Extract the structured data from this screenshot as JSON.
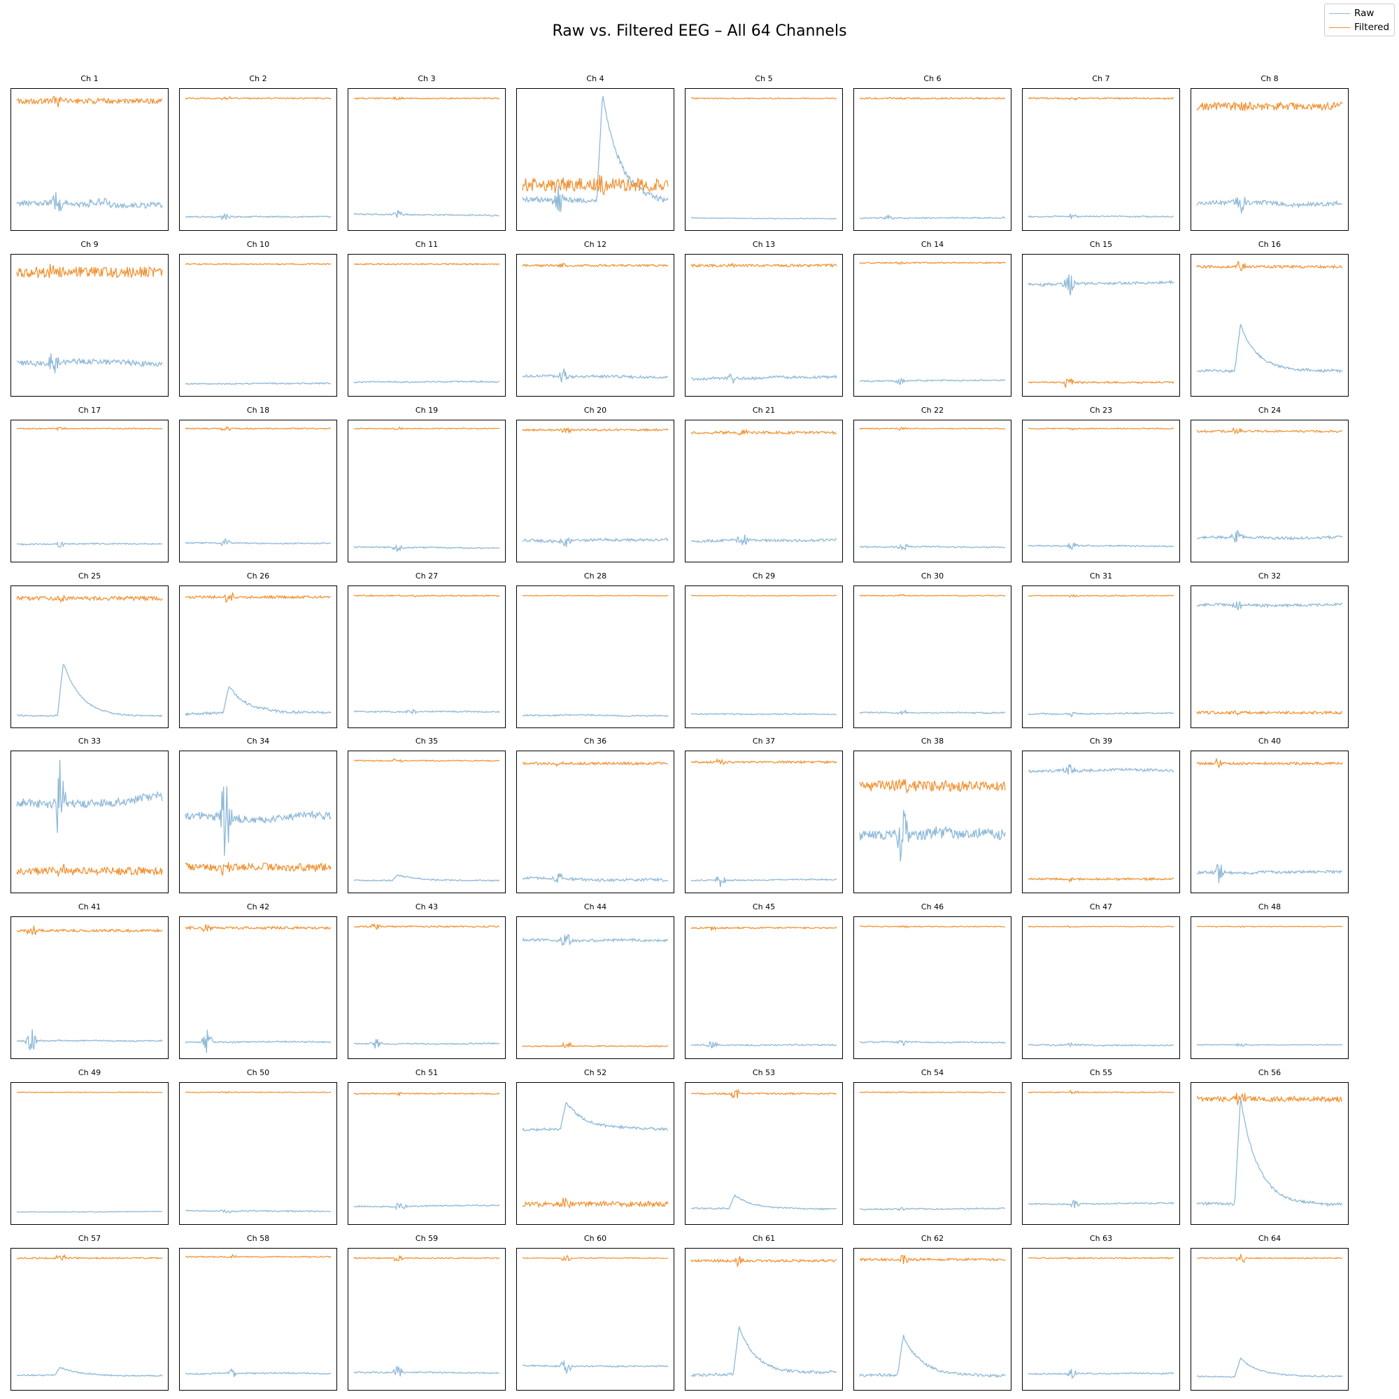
{
  "title": "Raw vs. Filtered EEG – All 64 Channels",
  "legend": {
    "placement": "top-right",
    "items": [
      {
        "label": "Raw",
        "color": "#8fb9d8"
      },
      {
        "label": "Filtered",
        "color": "#f28e2b"
      }
    ]
  },
  "chart_data": {
    "type": "line",
    "subplots_grid": "8x8",
    "axes_ticks": false,
    "grid": false,
    "series_names": [
      "Raw",
      "Filtered"
    ],
    "colors": {
      "raw": "#8fb9d8",
      "filtered": "#f28e2b"
    },
    "note_values": "relative levels per panel, 0 = panel bottom, 1 = panel top",
    "channels": [
      {
        "name": "Ch 1",
        "raw": 0.16,
        "raw_amp": 0.04,
        "raw_events": [
          [
            0.28,
            0.12,
            "burst"
          ],
          [
            0.55,
            0.03,
            "step"
          ]
        ],
        "filt": 0.94,
        "filt_amp": 0.02
      },
      {
        "name": "Ch 2",
        "raw": 0.07,
        "raw_amp": 0.01,
        "raw_events": [
          [
            0.28,
            0.03,
            "burst"
          ]
        ],
        "filt": 0.96,
        "filt_amp": 0.005
      },
      {
        "name": "Ch 3",
        "raw": 0.09,
        "raw_amp": 0.01,
        "raw_events": [
          [
            0.3,
            0.03,
            "burst"
          ]
        ],
        "filt": 0.96,
        "filt_amp": 0.005
      },
      {
        "name": "Ch 4",
        "raw": 0.2,
        "raw_amp": 0.04,
        "raw_events": [
          [
            0.55,
            0.8,
            "peak"
          ],
          [
            0.25,
            0.15,
            "burst"
          ]
        ],
        "filt": 0.31,
        "filt_amp": 0.05
      },
      {
        "name": "Ch 5",
        "raw": 0.06,
        "raw_amp": 0.005,
        "raw_events": [],
        "filt": 0.96,
        "filt_amp": 0.004
      },
      {
        "name": "Ch 6",
        "raw": 0.06,
        "raw_amp": 0.01,
        "raw_events": [
          [
            0.2,
            0.02,
            "burst"
          ]
        ],
        "filt": 0.96,
        "filt_amp": 0.006
      },
      {
        "name": "Ch 7",
        "raw": 0.07,
        "raw_amp": 0.01,
        "raw_events": [
          [
            0.3,
            0.02,
            "burst"
          ]
        ],
        "filt": 0.96,
        "filt_amp": 0.006
      },
      {
        "name": "Ch 8",
        "raw": 0.17,
        "raw_amp": 0.03,
        "raw_events": [
          [
            0.3,
            0.1,
            "burst"
          ]
        ],
        "filt": 0.9,
        "filt_amp": 0.03
      },
      {
        "name": "Ch 9",
        "raw": 0.22,
        "raw_amp": 0.04,
        "raw_events": [
          [
            0.25,
            0.1,
            "burst"
          ]
        ],
        "filt": 0.9,
        "filt_amp": 0.04
      },
      {
        "name": "Ch 10",
        "raw": 0.06,
        "raw_amp": 0.01,
        "raw_events": [],
        "filt": 0.96,
        "filt_amp": 0.005
      },
      {
        "name": "Ch 11",
        "raw": 0.07,
        "raw_amp": 0.01,
        "raw_events": [],
        "filt": 0.96,
        "filt_amp": 0.005
      },
      {
        "name": "Ch 12",
        "raw": 0.12,
        "raw_amp": 0.02,
        "raw_events": [
          [
            0.28,
            0.06,
            "burst"
          ]
        ],
        "filt": 0.95,
        "filt_amp": 0.008
      },
      {
        "name": "Ch 13",
        "raw": 0.1,
        "raw_amp": 0.02,
        "raw_events": [
          [
            0.28,
            0.04,
            "burst"
          ]
        ],
        "filt": 0.95,
        "filt_amp": 0.01
      },
      {
        "name": "Ch 14",
        "raw": 0.08,
        "raw_amp": 0.01,
        "raw_events": [
          [
            0.28,
            0.03,
            "burst"
          ]
        ],
        "filt": 0.97,
        "filt_amp": 0.005
      },
      {
        "name": "Ch 15",
        "raw": 0.81,
        "raw_amp": 0.02,
        "raw_events": [
          [
            0.28,
            0.12,
            "burst"
          ]
        ],
        "filt": 0.07,
        "filt_amp": 0.007
      },
      {
        "name": "Ch 16",
        "raw": 0.16,
        "raw_amp": 0.02,
        "raw_events": [
          [
            0.3,
            0.35,
            "peak"
          ]
        ],
        "filt": 0.94,
        "filt_amp": 0.01
      },
      {
        "name": "Ch 17",
        "raw": 0.1,
        "raw_amp": 0.01,
        "raw_events": [
          [
            0.3,
            0.03,
            "burst"
          ]
        ],
        "filt": 0.97,
        "filt_amp": 0.004
      },
      {
        "name": "Ch 18",
        "raw": 0.11,
        "raw_amp": 0.01,
        "raw_events": [
          [
            0.28,
            0.04,
            "burst"
          ]
        ],
        "filt": 0.97,
        "filt_amp": 0.005
      },
      {
        "name": "Ch 19",
        "raw": 0.08,
        "raw_amp": 0.01,
        "raw_events": [
          [
            0.3,
            0.03,
            "burst"
          ]
        ],
        "filt": 0.97,
        "filt_amp": 0.004
      },
      {
        "name": "Ch 20",
        "raw": 0.13,
        "raw_amp": 0.02,
        "raw_events": [
          [
            0.3,
            0.06,
            "burst"
          ]
        ],
        "filt": 0.96,
        "filt_amp": 0.008
      },
      {
        "name": "Ch 21",
        "raw": 0.12,
        "raw_amp": 0.02,
        "raw_events": [
          [
            0.35,
            0.07,
            "burst"
          ]
        ],
        "filt": 0.94,
        "filt_amp": 0.01
      },
      {
        "name": "Ch 22",
        "raw": 0.08,
        "raw_amp": 0.01,
        "raw_events": [
          [
            0.3,
            0.03,
            "burst"
          ]
        ],
        "filt": 0.97,
        "filt_amp": 0.004
      },
      {
        "name": "Ch 23",
        "raw": 0.09,
        "raw_amp": 0.01,
        "raw_events": [
          [
            0.3,
            0.03,
            "burst"
          ]
        ],
        "filt": 0.97,
        "filt_amp": 0.004
      },
      {
        "name": "Ch 24",
        "raw": 0.15,
        "raw_amp": 0.02,
        "raw_events": [
          [
            0.28,
            0.07,
            "burst"
          ]
        ],
        "filt": 0.95,
        "filt_amp": 0.008
      },
      {
        "name": "Ch 25",
        "raw": 0.06,
        "raw_amp": 0.01,
        "raw_events": [
          [
            0.32,
            0.4,
            "peak"
          ]
        ],
        "filt": 0.94,
        "filt_amp": 0.015
      },
      {
        "name": "Ch 26",
        "raw": 0.07,
        "raw_amp": 0.02,
        "raw_events": [
          [
            0.3,
            0.2,
            "peak"
          ]
        ],
        "filt": 0.95,
        "filt_amp": 0.01
      },
      {
        "name": "Ch 27",
        "raw": 0.09,
        "raw_amp": 0.01,
        "raw_events": [
          [
            0.4,
            0.02,
            "burst"
          ]
        ],
        "filt": 0.96,
        "filt_amp": 0.005
      },
      {
        "name": "Ch 28",
        "raw": 0.06,
        "raw_amp": 0.01,
        "raw_events": [],
        "filt": 0.96,
        "filt_amp": 0.003
      },
      {
        "name": "Ch 29",
        "raw": 0.07,
        "raw_amp": 0.01,
        "raw_events": [],
        "filt": 0.96,
        "filt_amp": 0.003
      },
      {
        "name": "Ch 30",
        "raw": 0.08,
        "raw_amp": 0.01,
        "raw_events": [
          [
            0.3,
            0.02,
            "burst"
          ]
        ],
        "filt": 0.96,
        "filt_amp": 0.004
      },
      {
        "name": "Ch 31",
        "raw": 0.07,
        "raw_amp": 0.01,
        "raw_events": [
          [
            0.3,
            0.02,
            "burst"
          ]
        ],
        "filt": 0.96,
        "filt_amp": 0.004
      },
      {
        "name": "Ch 32",
        "raw": 0.89,
        "raw_amp": 0.02,
        "raw_events": [
          [
            0.28,
            0.05,
            "burst"
          ]
        ],
        "filt": 0.08,
        "filt_amp": 0.01
      },
      {
        "name": "Ch 33",
        "raw": 0.65,
        "raw_amp": 0.06,
        "raw_events": [
          [
            0.3,
            0.35,
            "burst"
          ]
        ],
        "filt": 0.13,
        "filt_amp": 0.03
      },
      {
        "name": "Ch 34",
        "raw": 0.55,
        "raw_amp": 0.06,
        "raw_events": [
          [
            0.28,
            0.4,
            "burst"
          ]
        ],
        "filt": 0.16,
        "filt_amp": 0.03
      },
      {
        "name": "Ch 35",
        "raw": 0.06,
        "raw_amp": 0.01,
        "raw_events": [
          [
            0.3,
            0.04,
            "peak"
          ]
        ],
        "filt": 0.96,
        "filt_amp": 0.004
      },
      {
        "name": "Ch 36",
        "raw": 0.08,
        "raw_amp": 0.02,
        "raw_events": [
          [
            0.25,
            0.05,
            "burst"
          ]
        ],
        "filt": 0.94,
        "filt_amp": 0.01
      },
      {
        "name": "Ch 37",
        "raw": 0.06,
        "raw_amp": 0.01,
        "raw_events": [
          [
            0.2,
            0.06,
            "burst"
          ]
        ],
        "filt": 0.95,
        "filt_amp": 0.008
      },
      {
        "name": "Ch 38",
        "raw": 0.4,
        "raw_amp": 0.08,
        "raw_events": [
          [
            0.3,
            0.35,
            "burst"
          ]
        ],
        "filt": 0.77,
        "filt_amp": 0.04
      },
      {
        "name": "Ch 39",
        "raw": 0.88,
        "raw_amp": 0.02,
        "raw_events": [
          [
            0.28,
            0.05,
            "burst"
          ]
        ],
        "filt": 0.07,
        "filt_amp": 0.008
      },
      {
        "name": "Ch 40",
        "raw": 0.12,
        "raw_amp": 0.02,
        "raw_events": [
          [
            0.15,
            0.1,
            "burst"
          ]
        ],
        "filt": 0.94,
        "filt_amp": 0.01
      },
      {
        "name": "Ch 41",
        "raw": 0.1,
        "raw_amp": 0.01,
        "raw_events": [
          [
            0.1,
            0.1,
            "burst"
          ]
        ],
        "filt": 0.93,
        "filt_amp": 0.01
      },
      {
        "name": "Ch 42",
        "raw": 0.09,
        "raw_amp": 0.01,
        "raw_events": [
          [
            0.15,
            0.1,
            "burst"
          ]
        ],
        "filt": 0.95,
        "filt_amp": 0.01
      },
      {
        "name": "Ch 43",
        "raw": 0.08,
        "raw_amp": 0.01,
        "raw_events": [
          [
            0.15,
            0.05,
            "burst"
          ]
        ],
        "filt": 0.96,
        "filt_amp": 0.006
      },
      {
        "name": "Ch 44",
        "raw": 0.86,
        "raw_amp": 0.02,
        "raw_events": [
          [
            0.3,
            0.08,
            "burst"
          ]
        ],
        "filt": 0.06,
        "filt_amp": 0.005
      },
      {
        "name": "Ch 45",
        "raw": 0.07,
        "raw_amp": 0.01,
        "raw_events": [
          [
            0.15,
            0.05,
            "burst"
          ]
        ],
        "filt": 0.95,
        "filt_amp": 0.006
      },
      {
        "name": "Ch 46",
        "raw": 0.09,
        "raw_amp": 0.01,
        "raw_events": [
          [
            0.3,
            0.02,
            "burst"
          ]
        ],
        "filt": 0.96,
        "filt_amp": 0.004
      },
      {
        "name": "Ch 47",
        "raw": 0.07,
        "raw_amp": 0.01,
        "raw_events": [
          [
            0.3,
            0.02,
            "burst"
          ]
        ],
        "filt": 0.96,
        "filt_amp": 0.003
      },
      {
        "name": "Ch 48",
        "raw": 0.07,
        "raw_amp": 0.005,
        "raw_events": [
          [
            0.3,
            0.02,
            "burst"
          ]
        ],
        "filt": 0.96,
        "filt_amp": 0.003
      },
      {
        "name": "Ch 49",
        "raw": 0.06,
        "raw_amp": 0.005,
        "raw_events": [],
        "filt": 0.96,
        "filt_amp": 0.003
      },
      {
        "name": "Ch 50",
        "raw": 0.07,
        "raw_amp": 0.01,
        "raw_events": [
          [
            0.28,
            0.02,
            "burst"
          ]
        ],
        "filt": 0.96,
        "filt_amp": 0.003
      },
      {
        "name": "Ch 51",
        "raw": 0.1,
        "raw_amp": 0.01,
        "raw_events": [
          [
            0.32,
            0.04,
            "burst"
          ]
        ],
        "filt": 0.95,
        "filt_amp": 0.005
      },
      {
        "name": "Ch 52",
        "raw": 0.68,
        "raw_amp": 0.02,
        "raw_events": [
          [
            0.3,
            0.2,
            "peak"
          ]
        ],
        "filt": 0.12,
        "filt_amp": 0.02
      },
      {
        "name": "Ch 53",
        "raw": 0.09,
        "raw_amp": 0.01,
        "raw_events": [
          [
            0.3,
            0.1,
            "peak"
          ]
        ],
        "filt": 0.95,
        "filt_amp": 0.006
      },
      {
        "name": "Ch 54",
        "raw": 0.08,
        "raw_amp": 0.01,
        "raw_events": [
          [
            0.3,
            0.02,
            "burst"
          ]
        ],
        "filt": 0.96,
        "filt_amp": 0.004
      },
      {
        "name": "Ch 55",
        "raw": 0.12,
        "raw_amp": 0.01,
        "raw_events": [
          [
            0.32,
            0.04,
            "burst"
          ]
        ],
        "filt": 0.96,
        "filt_amp": 0.004
      },
      {
        "name": "Ch 56",
        "raw": 0.12,
        "raw_amp": 0.02,
        "raw_events": [
          [
            0.3,
            0.8,
            "peak"
          ]
        ],
        "filt": 0.91,
        "filt_amp": 0.02
      },
      {
        "name": "Ch 57",
        "raw": 0.08,
        "raw_amp": 0.01,
        "raw_events": [
          [
            0.3,
            0.06,
            "peak"
          ]
        ],
        "filt": 0.96,
        "filt_amp": 0.006
      },
      {
        "name": "Ch 58",
        "raw": 0.09,
        "raw_amp": 0.01,
        "raw_events": [
          [
            0.32,
            0.04,
            "burst"
          ]
        ],
        "filt": 0.97,
        "filt_amp": 0.004
      },
      {
        "name": "Ch 59",
        "raw": 0.1,
        "raw_amp": 0.01,
        "raw_events": [
          [
            0.3,
            0.06,
            "burst"
          ]
        ],
        "filt": 0.96,
        "filt_amp": 0.005
      },
      {
        "name": "Ch 60",
        "raw": 0.15,
        "raw_amp": 0.01,
        "raw_events": [
          [
            0.3,
            0.07,
            "burst"
          ]
        ],
        "filt": 0.96,
        "filt_amp": 0.004
      },
      {
        "name": "Ch 61",
        "raw": 0.08,
        "raw_amp": 0.02,
        "raw_events": [
          [
            0.33,
            0.35,
            "peak"
          ]
        ],
        "filt": 0.94,
        "filt_amp": 0.01
      },
      {
        "name": "Ch 62",
        "raw": 0.08,
        "raw_amp": 0.02,
        "raw_events": [
          [
            0.3,
            0.3,
            "peak"
          ]
        ],
        "filt": 0.95,
        "filt_amp": 0.01
      },
      {
        "name": "Ch 63",
        "raw": 0.09,
        "raw_amp": 0.01,
        "raw_events": [
          [
            0.3,
            0.04,
            "burst"
          ]
        ],
        "filt": 0.96,
        "filt_amp": 0.005
      },
      {
        "name": "Ch 64",
        "raw": 0.07,
        "raw_amp": 0.01,
        "raw_events": [
          [
            0.3,
            0.14,
            "peak"
          ]
        ],
        "filt": 0.96,
        "filt_amp": 0.005
      }
    ]
  }
}
